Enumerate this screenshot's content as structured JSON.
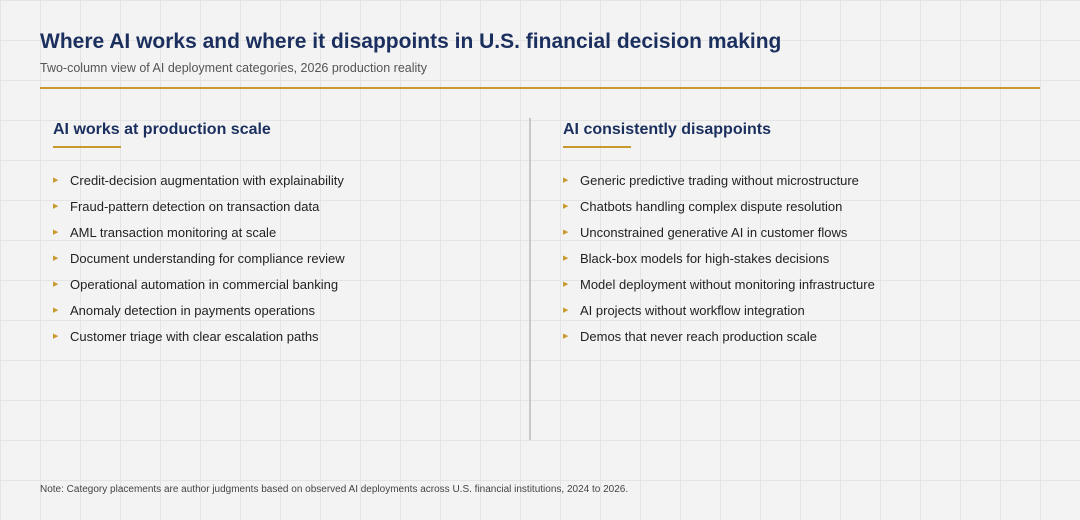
{
  "header": {
    "title": "Where AI works and where it disappoints in U.S. financial decision making",
    "subtitle": "Two-column view of AI deployment categories, 2026 production reality"
  },
  "colors": {
    "accent": "#c9992f",
    "heading": "#1b2f5e"
  },
  "columns": {
    "works": {
      "heading": "AI works at production scale",
      "items": [
        "Credit-decision augmentation with explainability",
        "Fraud-pattern detection on transaction data",
        "AML transaction monitoring at scale",
        "Document understanding for compliance review",
        "Operational automation in commercial banking",
        "Anomaly detection in payments operations",
        "Customer triage with clear escalation paths"
      ]
    },
    "disappoints": {
      "heading": "AI consistently disappoints",
      "items": [
        "Generic predictive trading without microstructure",
        "Chatbots handling complex dispute resolution",
        "Unconstrained generative AI in customer flows",
        "Black-box models for high-stakes decisions",
        "Model deployment without monitoring infrastructure",
        "AI projects without workflow integration",
        "Demos that never reach production scale"
      ]
    }
  },
  "footer": {
    "note": "Note: Category placements are author judgments based on observed AI deployments across U.S. financial institutions, 2024 to 2026."
  }
}
